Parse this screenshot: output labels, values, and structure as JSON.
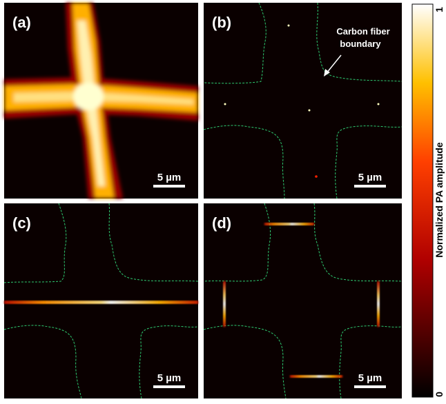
{
  "panels": [
    {
      "id": "a",
      "label": "(a)",
      "scalebar": "5 µm"
    },
    {
      "id": "b",
      "label": "(b)",
      "scalebar": "5 µm",
      "annotation_line1": "Carbon fiber",
      "annotation_line2": "boundary"
    },
    {
      "id": "c",
      "label": "(c)",
      "scalebar": "5 µm"
    },
    {
      "id": "d",
      "label": "(d)",
      "scalebar": "5 µm"
    }
  ],
  "colorbar": {
    "label": "Normalized PA amplitude",
    "max_label": "1",
    "min_label": "0",
    "colormap": "hot"
  },
  "colors": {
    "boundary": "#2ecc71",
    "background": "#0a0000"
  }
}
